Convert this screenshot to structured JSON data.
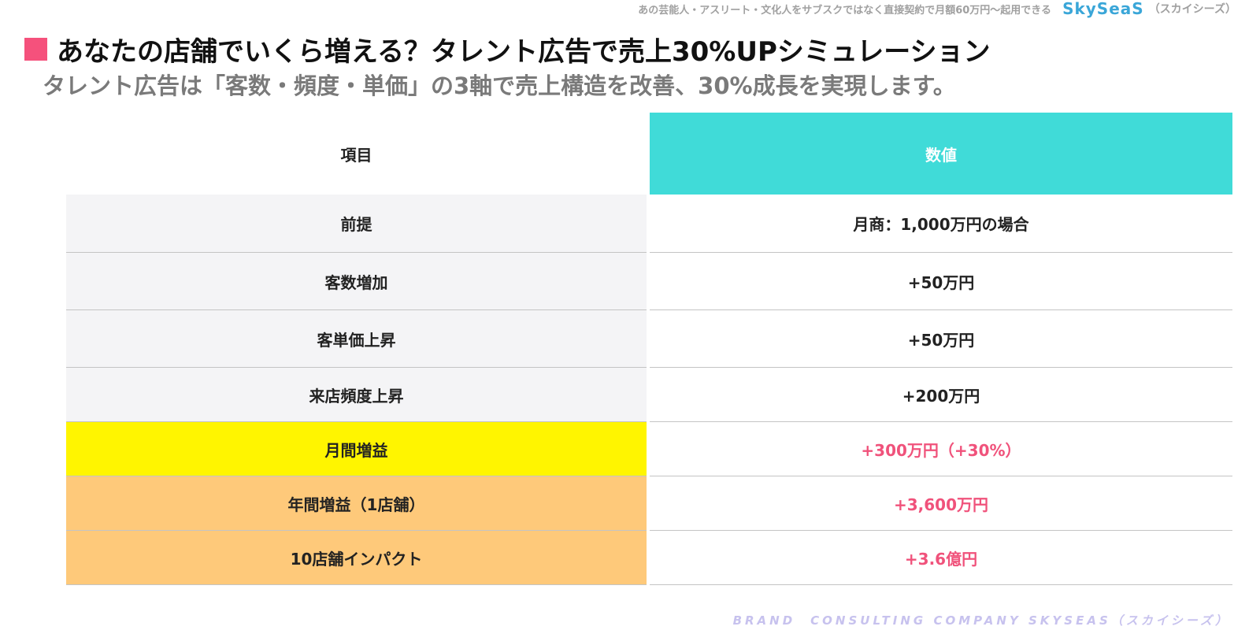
{
  "header": {
    "tagline": "あの芸能人・アスリート・文化人をサブスクではなく直接契約で月額60万円〜起用できる",
    "brand_logo": "SkySeaS",
    "brand_kana": "（スカイシーズ）",
    "title": "あなたの店舗でいくら増える？タレント広告で売上30%UPシミュレーション",
    "subtitle": "タレント広告は「客数・頻度・単価」の3軸で売上構造を改善、30%成長を実現します。"
  },
  "table": {
    "headers": {
      "item": "項目",
      "value": "数値"
    },
    "rows": [
      {
        "item": "前提",
        "value": "月商：1,000万円の場合"
      },
      {
        "item": "客数増加",
        "value": "+50万円"
      },
      {
        "item": "客単価上昇",
        "value": "+50万円"
      },
      {
        "item": "来店頻度上昇",
        "value": "+200万円"
      },
      {
        "item": "月間増益",
        "value": "+300万円（+30%）"
      },
      {
        "item": "年間増益（1店舗）",
        "value": "+3,600万円"
      },
      {
        "item": "10店舗インパクト",
        "value": "+3.6億円"
      }
    ]
  },
  "footer": {
    "text": "BRAND　CONSULTING COMPANY SKYSEAS（スカイシーズ）"
  },
  "colors": {
    "accent_pink": "#f5517c",
    "header_teal": "#40dbd8",
    "highlight_yellow": "#fff500",
    "highlight_orange": "#fec97a"
  },
  "icons": {
    "title_marker": "square-bullet-icon"
  }
}
